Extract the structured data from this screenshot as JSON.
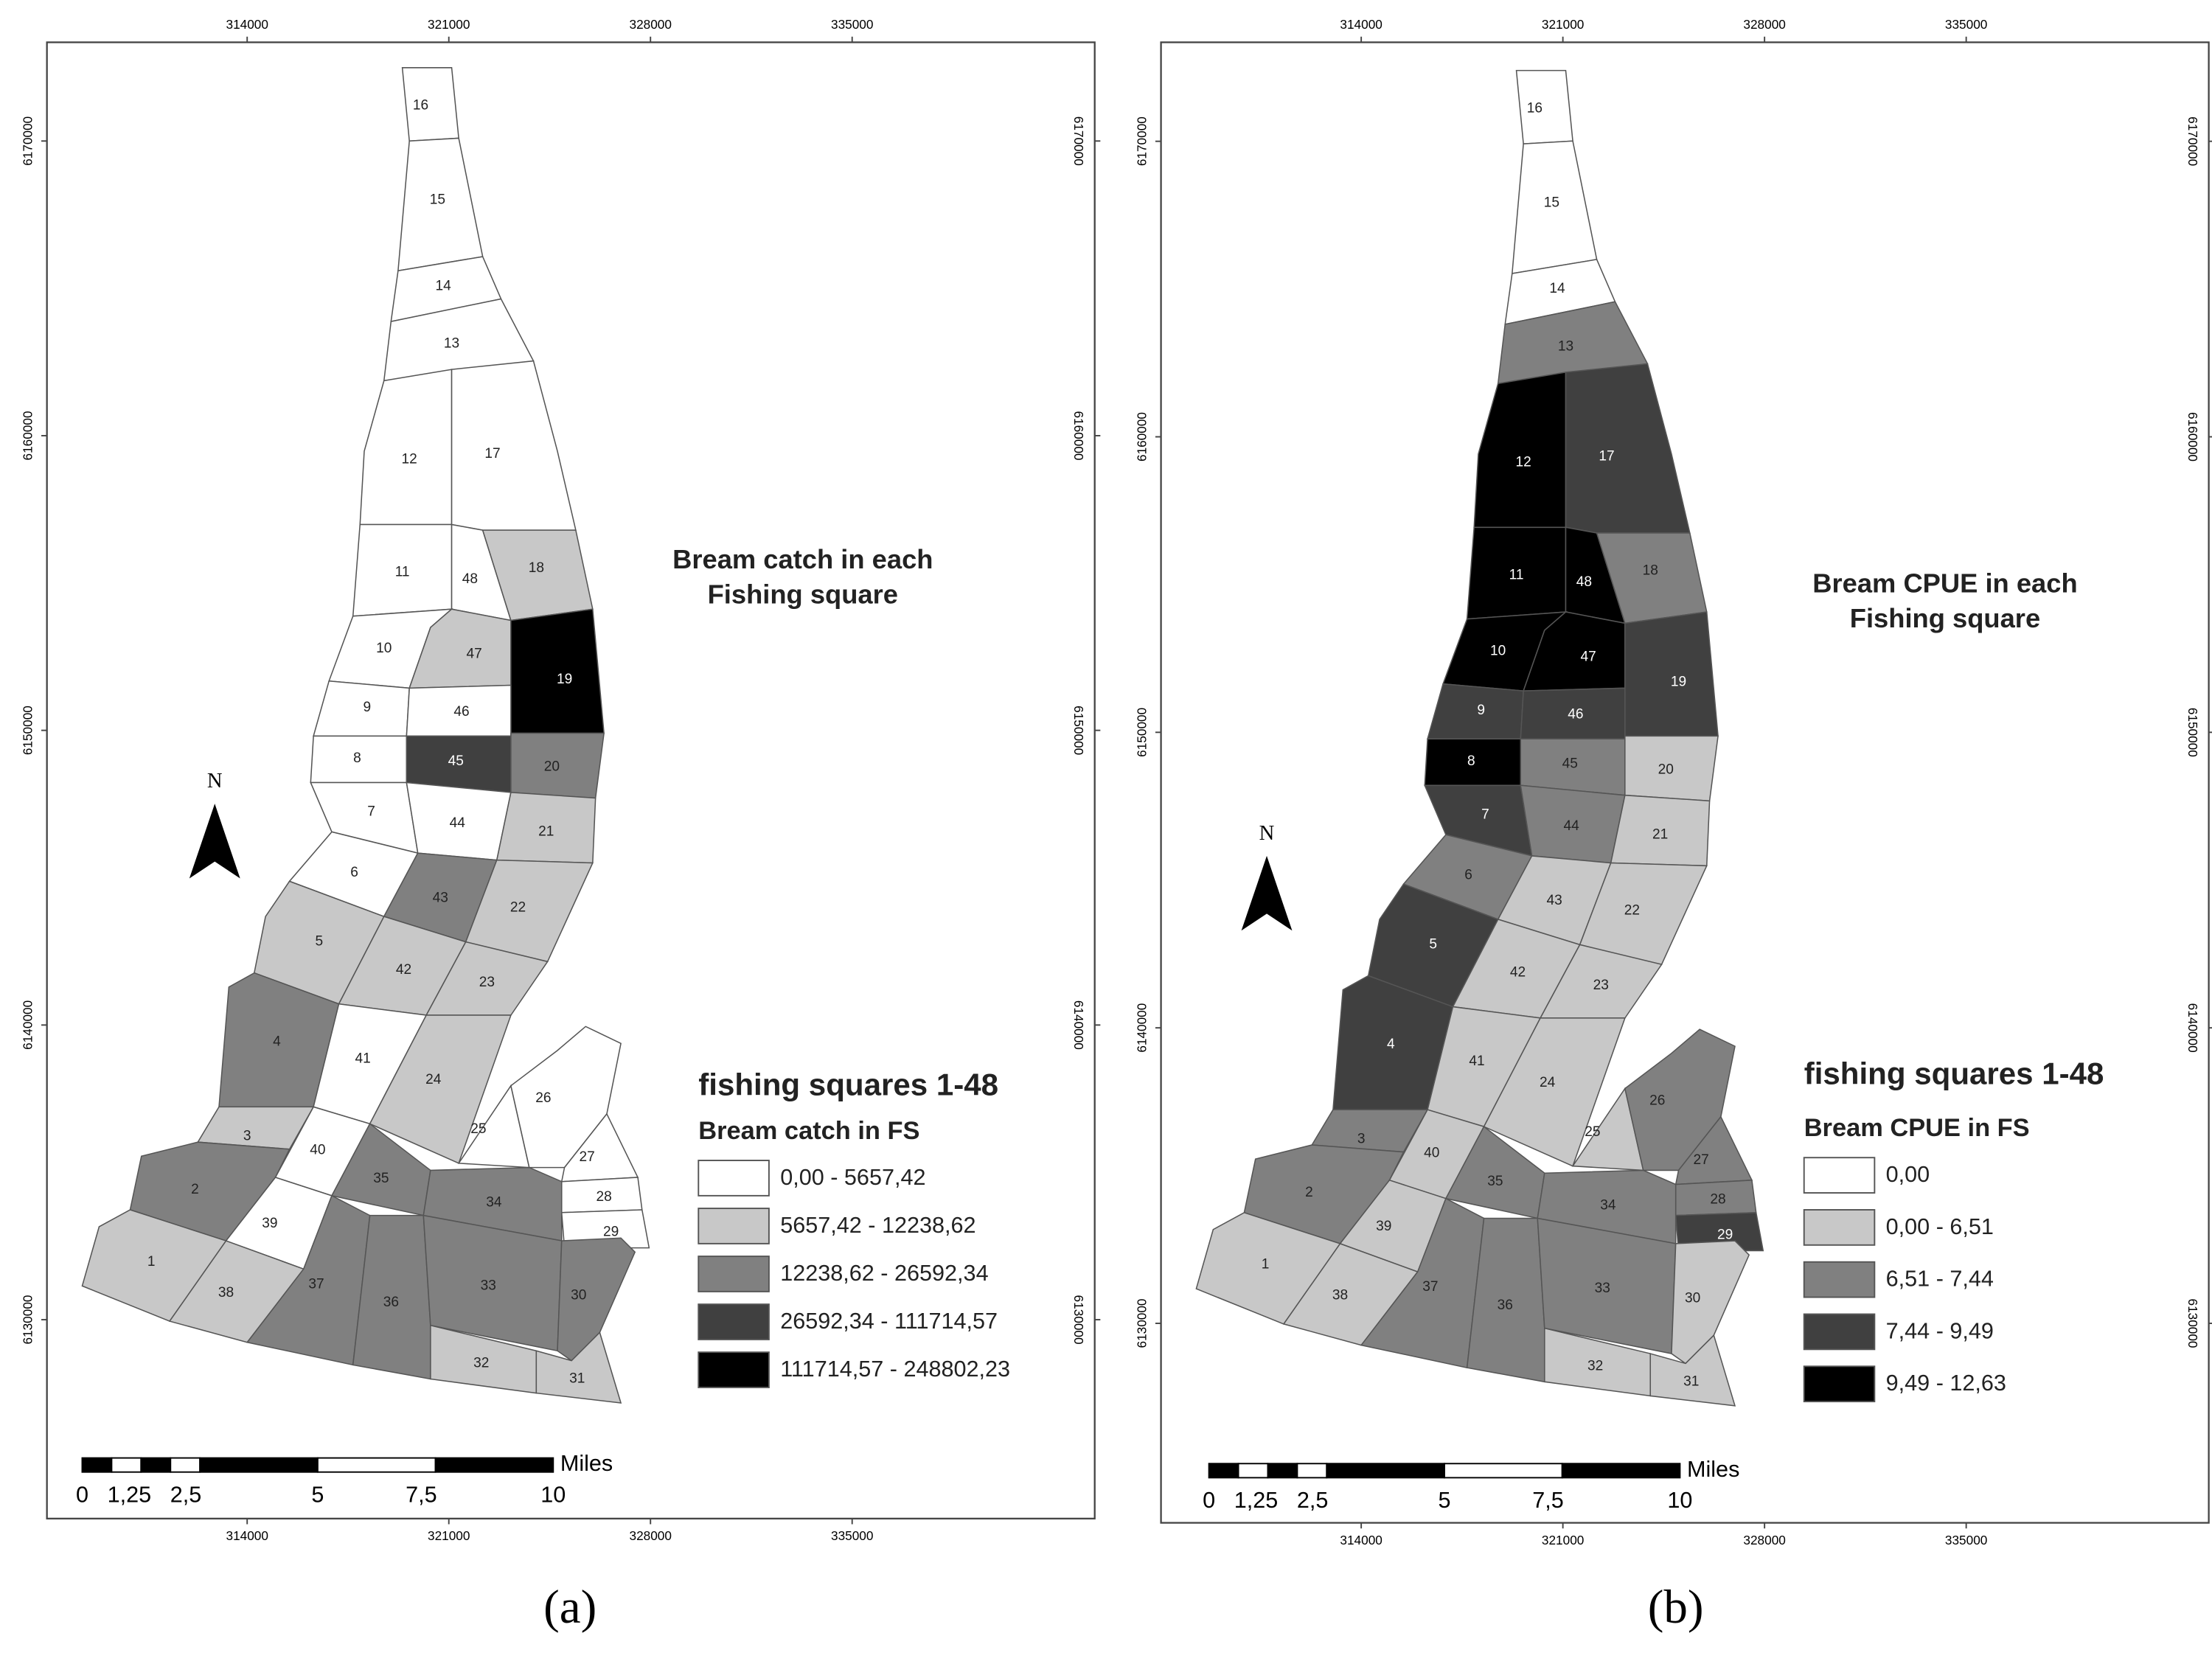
{
  "panels": [
    {
      "caption": "(a)",
      "title_lines": [
        "Bream catch in each",
        "Fishing square"
      ],
      "north": "N",
      "legend": {
        "title": "fishing squares 1-48",
        "subtitle": "Bream catch in FS",
        "items": [
          {
            "label": "0,00 - 5657,42",
            "color": "#ffffff"
          },
          {
            "label": "5657,42 - 12238,62",
            "color": "#c8c8c8"
          },
          {
            "label": "12238,62 - 26592,34",
            "color": "#808080"
          },
          {
            "label": "26592,34 - 111714,57",
            "color": "#404040"
          },
          {
            "label": "111714,57 - 248802,23",
            "color": "#000000"
          }
        ]
      },
      "scale_bar": {
        "labels": [
          "0",
          "1,25",
          "2,5",
          "5",
          "7,5",
          "10"
        ],
        "unit": "Miles"
      },
      "map": {
        "xlim": [
          307050,
          343420
        ],
        "ylim": [
          6123250,
          6173350
        ],
        "xticks": [
          314000,
          321000,
          328000,
          335000
        ],
        "yticks": [
          6130000,
          6140000,
          6150000,
          6160000,
          6170000
        ],
        "squares": [
          {
            "label": "16",
            "legend_class": 0
          },
          {
            "label": "15",
            "legend_class": 0
          },
          {
            "label": "14",
            "legend_class": 0
          },
          {
            "label": "13",
            "legend_class": 0
          },
          {
            "label": "12",
            "legend_class": 0
          },
          {
            "label": "17",
            "legend_class": 0
          },
          {
            "label": "11",
            "legend_class": 0
          },
          {
            "label": "48",
            "legend_class": 0
          },
          {
            "label": "18",
            "legend_class": 1
          },
          {
            "label": "10",
            "legend_class": 0
          },
          {
            "label": "47",
            "legend_class": 1
          },
          {
            "label": "19",
            "legend_class": 4
          },
          {
            "label": "9",
            "legend_class": 0
          },
          {
            "label": "46",
            "legend_class": 0
          },
          {
            "label": "8",
            "legend_class": 0
          },
          {
            "label": "45",
            "legend_class": 3
          },
          {
            "label": "20",
            "legend_class": 2
          },
          {
            "label": "7",
            "legend_class": 0
          },
          {
            "label": "44",
            "legend_class": 0
          },
          {
            "label": "21",
            "legend_class": 1
          },
          {
            "label": "6",
            "legend_class": 0
          },
          {
            "label": "43",
            "legend_class": 2
          },
          {
            "label": "22",
            "legend_class": 1
          },
          {
            "label": "5",
            "legend_class": 1
          },
          {
            "label": "42",
            "legend_class": 1
          },
          {
            "label": "23",
            "legend_class": 1
          },
          {
            "label": "4",
            "legend_class": 2
          },
          {
            "label": "41",
            "legend_class": 0
          },
          {
            "label": "24",
            "legend_class": 1
          },
          {
            "label": "3",
            "legend_class": 1
          },
          {
            "label": "40",
            "legend_class": 0
          },
          {
            "label": "25",
            "legend_class": 0
          },
          {
            "label": "26",
            "legend_class": 0
          },
          {
            "label": "27",
            "legend_class": 0
          },
          {
            "label": "28",
            "legend_class": 0
          },
          {
            "label": "29",
            "legend_class": 0
          },
          {
            "label": "2",
            "legend_class": 2
          },
          {
            "label": "35",
            "legend_class": 2
          },
          {
            "label": "34",
            "legend_class": 2
          },
          {
            "label": "39",
            "legend_class": 0
          },
          {
            "label": "1",
            "legend_class": 1
          },
          {
            "label": "38",
            "legend_class": 1
          },
          {
            "label": "37",
            "legend_class": 2
          },
          {
            "label": "36",
            "legend_class": 2
          },
          {
            "label": "33",
            "legend_class": 2
          },
          {
            "label": "30",
            "legend_class": 2
          },
          {
            "label": "32",
            "legend_class": 1
          },
          {
            "label": "31",
            "legend_class": 1
          }
        ]
      }
    },
    {
      "caption": "(b)",
      "title_lines": [
        "Bream CPUE in each",
        "Fishing square"
      ],
      "north": "N",
      "legend": {
        "title": "fishing squares 1-48",
        "subtitle": "Bream CPUE in FS",
        "items": [
          {
            "label": "0,00",
            "color": "#ffffff"
          },
          {
            "label": "0,00 - 6,51",
            "color": "#c8c8c8"
          },
          {
            "label": "6,51 - 7,44",
            "color": "#808080"
          },
          {
            "label": "7,44 - 9,49",
            "color": "#404040"
          },
          {
            "label": "9,49 - 12,63",
            "color": "#000000"
          }
        ]
      },
      "scale_bar": {
        "labels": [
          "0",
          "1,25",
          "2,5",
          "5",
          "7,5",
          "10"
        ],
        "unit": "Miles"
      },
      "map": {
        "xlim": [
          307050,
          343420
        ],
        "ylim": [
          6123250,
          6173350
        ],
        "xticks": [
          314000,
          321000,
          328000,
          335000
        ],
        "yticks": [
          6130000,
          6140000,
          6150000,
          6160000,
          6170000
        ],
        "squares": [
          {
            "label": "16",
            "legend_class": 0
          },
          {
            "label": "15",
            "legend_class": 0
          },
          {
            "label": "14",
            "legend_class": 0
          },
          {
            "label": "13",
            "legend_class": 2
          },
          {
            "label": "12",
            "legend_class": 4
          },
          {
            "label": "17",
            "legend_class": 3
          },
          {
            "label": "11",
            "legend_class": 4
          },
          {
            "label": "48",
            "legend_class": 4
          },
          {
            "label": "18",
            "legend_class": 2
          },
          {
            "label": "10",
            "legend_class": 4
          },
          {
            "label": "47",
            "legend_class": 4
          },
          {
            "label": "19",
            "legend_class": 3
          },
          {
            "label": "9",
            "legend_class": 3
          },
          {
            "label": "46",
            "legend_class": 3
          },
          {
            "label": "8",
            "legend_class": 4
          },
          {
            "label": "45",
            "legend_class": 2
          },
          {
            "label": "20",
            "legend_class": 1
          },
          {
            "label": "7",
            "legend_class": 3
          },
          {
            "label": "44",
            "legend_class": 2
          },
          {
            "label": "21",
            "legend_class": 1
          },
          {
            "label": "6",
            "legend_class": 2
          },
          {
            "label": "43",
            "legend_class": 1
          },
          {
            "label": "22",
            "legend_class": 1
          },
          {
            "label": "5",
            "legend_class": 3
          },
          {
            "label": "42",
            "legend_class": 1
          },
          {
            "label": "23",
            "legend_class": 1
          },
          {
            "label": "4",
            "legend_class": 3
          },
          {
            "label": "41",
            "legend_class": 1
          },
          {
            "label": "24",
            "legend_class": 1
          },
          {
            "label": "3",
            "legend_class": 2
          },
          {
            "label": "40",
            "legend_class": 1
          },
          {
            "label": "25",
            "legend_class": 1
          },
          {
            "label": "26",
            "legend_class": 2
          },
          {
            "label": "27",
            "legend_class": 2
          },
          {
            "label": "28",
            "legend_class": 2
          },
          {
            "label": "29",
            "legend_class": 3
          },
          {
            "label": "2",
            "legend_class": 2
          },
          {
            "label": "35",
            "legend_class": 2
          },
          {
            "label": "34",
            "legend_class": 2
          },
          {
            "label": "39",
            "legend_class": 1
          },
          {
            "label": "1",
            "legend_class": 1
          },
          {
            "label": "38",
            "legend_class": 1
          },
          {
            "label": "37",
            "legend_class": 2
          },
          {
            "label": "36",
            "legend_class": 2
          },
          {
            "label": "33",
            "legend_class": 2
          },
          {
            "label": "30",
            "legend_class": 1
          },
          {
            "label": "32",
            "legend_class": 1
          },
          {
            "label": "31",
            "legend_class": 1
          }
        ]
      }
    }
  ]
}
